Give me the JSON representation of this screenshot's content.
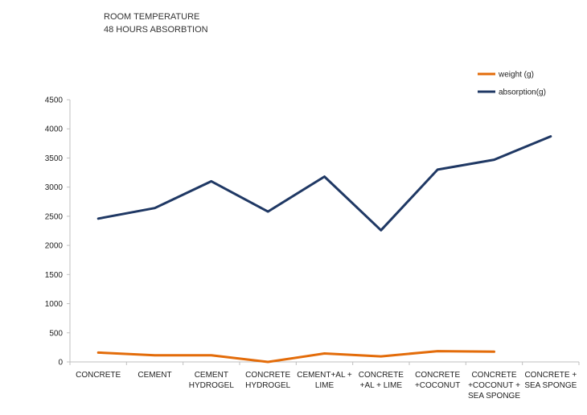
{
  "chart_data": {
    "type": "line",
    "title": [
      "ROOM TEMPERATURE",
      "48 HOURS ABSORBTION"
    ],
    "xlabel": "",
    "ylabel": "",
    "categories": [
      [
        "CONCRETE"
      ],
      [
        "CEMENT"
      ],
      [
        "CEMENT",
        "HYDROGEL"
      ],
      [
        "CONCRETE",
        "HYDROGEL"
      ],
      [
        "CEMENT+AL +",
        "LIME"
      ],
      [
        "CONCRETE",
        "+AL + LIME"
      ],
      [
        "CONCRETE",
        "+COCONUT"
      ],
      [
        "CONCRETE",
        "+COCONUT +",
        "SEA SPONGE"
      ],
      [
        "CONCRETE +",
        "SEA SPONGE"
      ]
    ],
    "ylim": [
      0,
      4500
    ],
    "yticks": [
      0,
      500,
      1000,
      1500,
      2000,
      2500,
      3000,
      3500,
      4000,
      4500
    ],
    "grid": false,
    "legend_position": "top-right",
    "series": [
      {
        "name": "weight (g)",
        "color": "#E36C0A",
        "values": [
          160,
          115,
          115,
          0,
          145,
          95,
          185,
          175,
          null
        ]
      },
      {
        "name": "absorption(g)",
        "color": "#1F3864",
        "values": [
          2460,
          2640,
          3100,
          2580,
          3180,
          2260,
          3300,
          3470,
          3870
        ]
      }
    ]
  }
}
